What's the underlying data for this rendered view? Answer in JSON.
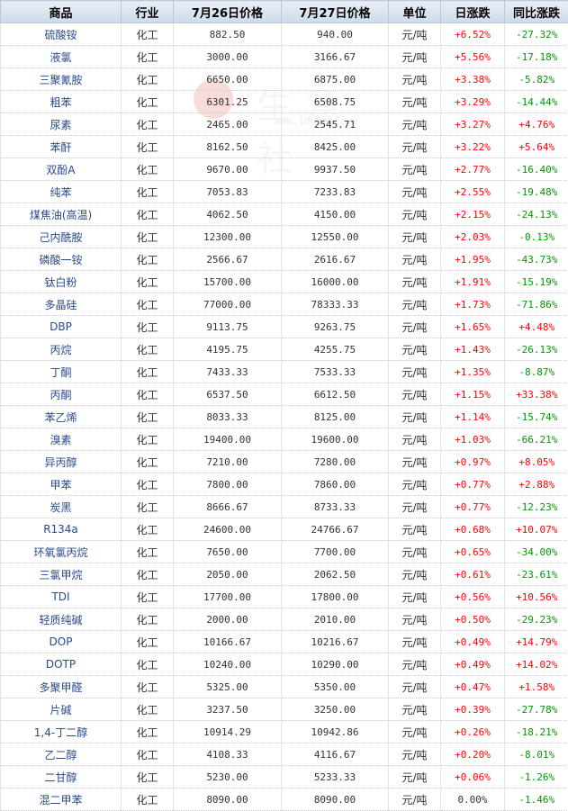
{
  "watermark": {
    "text": "生意社",
    "url": "www.100ppi.com"
  },
  "headers": [
    "商品",
    "行业",
    "7月26日价格",
    "7月27日价格",
    "单位",
    "日涨跌",
    "同比涨跌"
  ],
  "rows": [
    {
      "name": "硫酸铵",
      "industry": "化工",
      "p26": "882.50",
      "p27": "940.00",
      "unit": "元/吨",
      "day": "+6.52%",
      "yoy": "-27.32%"
    },
    {
      "name": "液氯",
      "industry": "化工",
      "p26": "3000.00",
      "p27": "3166.67",
      "unit": "元/吨",
      "day": "+5.56%",
      "yoy": "-17.18%"
    },
    {
      "name": "三聚氰胺",
      "industry": "化工",
      "p26": "6650.00",
      "p27": "6875.00",
      "unit": "元/吨",
      "day": "+3.38%",
      "yoy": "-5.82%"
    },
    {
      "name": "粗苯",
      "industry": "化工",
      "p26": "6301.25",
      "p27": "6508.75",
      "unit": "元/吨",
      "day": "+3.29%",
      "yoy": "-14.44%"
    },
    {
      "name": "尿素",
      "industry": "化工",
      "p26": "2465.00",
      "p27": "2545.71",
      "unit": "元/吨",
      "day": "+3.27%",
      "yoy": "+4.76%"
    },
    {
      "name": "苯酐",
      "industry": "化工",
      "p26": "8162.50",
      "p27": "8425.00",
      "unit": "元/吨",
      "day": "+3.22%",
      "yoy": "+5.64%"
    },
    {
      "name": "双酚A",
      "industry": "化工",
      "p26": "9670.00",
      "p27": "9937.50",
      "unit": "元/吨",
      "day": "+2.77%",
      "yoy": "-16.40%"
    },
    {
      "name": "纯苯",
      "industry": "化工",
      "p26": "7053.83",
      "p27": "7233.83",
      "unit": "元/吨",
      "day": "+2.55%",
      "yoy": "-19.48%"
    },
    {
      "name": "煤焦油(高温)",
      "industry": "化工",
      "p26": "4062.50",
      "p27": "4150.00",
      "unit": "元/吨",
      "day": "+2.15%",
      "yoy": "-24.13%"
    },
    {
      "name": "己内酰胺",
      "industry": "化工",
      "p26": "12300.00",
      "p27": "12550.00",
      "unit": "元/吨",
      "day": "+2.03%",
      "yoy": "-0.13%"
    },
    {
      "name": "磷酸一铵",
      "industry": "化工",
      "p26": "2566.67",
      "p27": "2616.67",
      "unit": "元/吨",
      "day": "+1.95%",
      "yoy": "-43.73%"
    },
    {
      "name": "钛白粉",
      "industry": "化工",
      "p26": "15700.00",
      "p27": "16000.00",
      "unit": "元/吨",
      "day": "+1.91%",
      "yoy": "-15.19%"
    },
    {
      "name": "多晶硅",
      "industry": "化工",
      "p26": "77000.00",
      "p27": "78333.33",
      "unit": "元/吨",
      "day": "+1.73%",
      "yoy": "-71.86%"
    },
    {
      "name": "DBP",
      "industry": "化工",
      "p26": "9113.75",
      "p27": "9263.75",
      "unit": "元/吨",
      "day": "+1.65%",
      "yoy": "+4.48%"
    },
    {
      "name": "丙烷",
      "industry": "化工",
      "p26": "4195.75",
      "p27": "4255.75",
      "unit": "元/吨",
      "day": "+1.43%",
      "yoy": "-26.13%"
    },
    {
      "name": "丁酮",
      "industry": "化工",
      "p26": "7433.33",
      "p27": "7533.33",
      "unit": "元/吨",
      "day": "+1.35%",
      "yoy": "-8.87%"
    },
    {
      "name": "丙酮",
      "industry": "化工",
      "p26": "6537.50",
      "p27": "6612.50",
      "unit": "元/吨",
      "day": "+1.15%",
      "yoy": "+33.38%"
    },
    {
      "name": "苯乙烯",
      "industry": "化工",
      "p26": "8033.33",
      "p27": "8125.00",
      "unit": "元/吨",
      "day": "+1.14%",
      "yoy": "-15.74%"
    },
    {
      "name": "溴素",
      "industry": "化工",
      "p26": "19400.00",
      "p27": "19600.00",
      "unit": "元/吨",
      "day": "+1.03%",
      "yoy": "-66.21%"
    },
    {
      "name": "异丙醇",
      "industry": "化工",
      "p26": "7210.00",
      "p27": "7280.00",
      "unit": "元/吨",
      "day": "+0.97%",
      "yoy": "+8.05%"
    },
    {
      "name": "甲苯",
      "industry": "化工",
      "p26": "7800.00",
      "p27": "7860.00",
      "unit": "元/吨",
      "day": "+0.77%",
      "yoy": "+2.88%"
    },
    {
      "name": "炭黑",
      "industry": "化工",
      "p26": "8666.67",
      "p27": "8733.33",
      "unit": "元/吨",
      "day": "+0.77%",
      "yoy": "-12.23%"
    },
    {
      "name": "R134a",
      "industry": "化工",
      "p26": "24600.00",
      "p27": "24766.67",
      "unit": "元/吨",
      "day": "+0.68%",
      "yoy": "+10.07%"
    },
    {
      "name": "环氧氯丙烷",
      "industry": "化工",
      "p26": "7650.00",
      "p27": "7700.00",
      "unit": "元/吨",
      "day": "+0.65%",
      "yoy": "-34.00%"
    },
    {
      "name": "三氯甲烷",
      "industry": "化工",
      "p26": "2050.00",
      "p27": "2062.50",
      "unit": "元/吨",
      "day": "+0.61%",
      "yoy": "-23.61%"
    },
    {
      "name": "TDI",
      "industry": "化工",
      "p26": "17700.00",
      "p27": "17800.00",
      "unit": "元/吨",
      "day": "+0.56%",
      "yoy": "+10.56%"
    },
    {
      "name": "轻质纯碱",
      "industry": "化工",
      "p26": "2000.00",
      "p27": "2010.00",
      "unit": "元/吨",
      "day": "+0.50%",
      "yoy": "-29.23%"
    },
    {
      "name": "DOP",
      "industry": "化工",
      "p26": "10166.67",
      "p27": "10216.67",
      "unit": "元/吨",
      "day": "+0.49%",
      "yoy": "+14.79%"
    },
    {
      "name": "DOTP",
      "industry": "化工",
      "p26": "10240.00",
      "p27": "10290.00",
      "unit": "元/吨",
      "day": "+0.49%",
      "yoy": "+14.02%"
    },
    {
      "name": "多聚甲醛",
      "industry": "化工",
      "p26": "5325.00",
      "p27": "5350.00",
      "unit": "元/吨",
      "day": "+0.47%",
      "yoy": "+1.58%"
    },
    {
      "name": "片碱",
      "industry": "化工",
      "p26": "3237.50",
      "p27": "3250.00",
      "unit": "元/吨",
      "day": "+0.39%",
      "yoy": "-27.78%"
    },
    {
      "name": "1,4-丁二醇",
      "industry": "化工",
      "p26": "10914.29",
      "p27": "10942.86",
      "unit": "元/吨",
      "day": "+0.26%",
      "yoy": "-18.21%"
    },
    {
      "name": "乙二醇",
      "industry": "化工",
      "p26": "4108.33",
      "p27": "4116.67",
      "unit": "元/吨",
      "day": "+0.20%",
      "yoy": "-8.01%"
    },
    {
      "name": "二甘醇",
      "industry": "化工",
      "p26": "5230.00",
      "p27": "5233.33",
      "unit": "元/吨",
      "day": "+0.06%",
      "yoy": "-1.26%"
    },
    {
      "name": "混二甲苯",
      "industry": "化工",
      "p26": "8090.00",
      "p27": "8090.00",
      "unit": "元/吨",
      "day": "0.00%",
      "yoy": "-1.46%"
    }
  ]
}
